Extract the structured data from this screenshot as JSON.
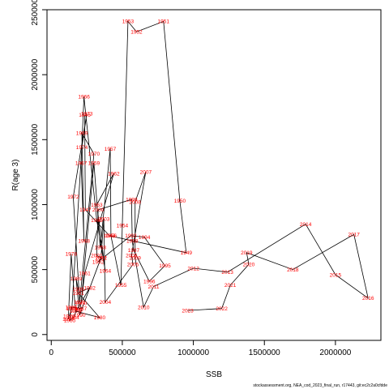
{
  "chart_data": {
    "type": "line",
    "xlabel": "SSB",
    "ylabel": "R(age 3)",
    "xlim": [
      -30000,
      2320000
    ],
    "ylim": [
      -45000,
      2500000
    ],
    "x_ticks": [
      0,
      500000,
      1000000,
      1500000,
      2000000
    ],
    "y_ticks": [
      0,
      500000,
      1000000,
      1500000,
      2000000,
      2500000
    ],
    "line_color": "#000000",
    "label_color": "#ff0000",
    "points": [
      {
        "year": "1946",
        "x": 235000,
        "y": 1690000
      },
      {
        "year": "1947",
        "x": 240000,
        "y": 960000
      },
      {
        "year": "1948",
        "x": 410000,
        "y": 760000
      },
      {
        "year": "1949",
        "x": 950000,
        "y": 630000
      },
      {
        "year": "1950",
        "x": 905000,
        "y": 1030000
      },
      {
        "year": "1951",
        "x": 790000,
        "y": 2410000
      },
      {
        "year": "1952",
        "x": 600000,
        "y": 2330000
      },
      {
        "year": "1953",
        "x": 540000,
        "y": 2410000
      },
      {
        "year": "1954",
        "x": 500000,
        "y": 840000
      },
      {
        "year": "1955",
        "x": 490000,
        "y": 380000
      },
      {
        "year": "1956",
        "x": 420000,
        "y": 760000
      },
      {
        "year": "1957",
        "x": 415000,
        "y": 1430000
      },
      {
        "year": "1958",
        "x": 345000,
        "y": 670000
      },
      {
        "year": "1959",
        "x": 300000,
        "y": 1320000
      },
      {
        "year": "1960",
        "x": 210000,
        "y": 240000
      },
      {
        "year": "1961",
        "x": 235000,
        "y": 470000
      },
      {
        "year": "1962",
        "x": 440000,
        "y": 1240000
      },
      {
        "year": "1963",
        "x": 320000,
        "y": 1000000
      },
      {
        "year": "1964",
        "x": 380000,
        "y": 490000
      },
      {
        "year": "1965",
        "x": 320000,
        "y": 880000
      },
      {
        "year": "1966",
        "x": 230000,
        "y": 1830000
      },
      {
        "year": "1967",
        "x": 210000,
        "y": 1320000
      },
      {
        "year": "1968",
        "x": 230000,
        "y": 720000
      },
      {
        "year": "1969",
        "x": 215000,
        "y": 1550000
      },
      {
        "year": "1970",
        "x": 300000,
        "y": 1390000
      },
      {
        "year": "1971",
        "x": 200000,
        "y": 250000
      },
      {
        "year": "1972",
        "x": 155000,
        "y": 1060000
      },
      {
        "year": "1973",
        "x": 250000,
        "y": 1700000
      },
      {
        "year": "1974",
        "x": 215000,
        "y": 1440000
      },
      {
        "year": "1975",
        "x": 145000,
        "y": 200000
      },
      {
        "year": "1976",
        "x": 125000,
        "y": 140000
      },
      {
        "year": "1977",
        "x": 120000,
        "y": 120000
      },
      {
        "year": "1978",
        "x": 140000,
        "y": 620000
      },
      {
        "year": "1979",
        "x": 170000,
        "y": 180000
      },
      {
        "year": "1980",
        "x": 340000,
        "y": 130000
      },
      {
        "year": "1981",
        "x": 190000,
        "y": 320000
      },
      {
        "year": "1982",
        "x": 270000,
        "y": 360000
      },
      {
        "year": "1983",
        "x": 180000,
        "y": 190000
      },
      {
        "year": "1984",
        "x": 155000,
        "y": 130000
      },
      {
        "year": "1985",
        "x": 130000,
        "y": 110000
      },
      {
        "year": "1986",
        "x": 140000,
        "y": 210000
      },
      {
        "year": "1987",
        "x": 210000,
        "y": 200000
      },
      {
        "year": "1988",
        "x": 190000,
        "y": 350000
      },
      {
        "year": "1989",
        "x": 175000,
        "y": 430000
      },
      {
        "year": "1990",
        "x": 200000,
        "y": 150000
      },
      {
        "year": "1991",
        "x": 350000,
        "y": 590000
      },
      {
        "year": "1992",
        "x": 330000,
        "y": 560000
      },
      {
        "year": "1993",
        "x": 560000,
        "y": 760000
      },
      {
        "year": "1994",
        "x": 655000,
        "y": 750000
      },
      {
        "year": "1995",
        "x": 800000,
        "y": 530000
      },
      {
        "year": "1996",
        "x": 690000,
        "y": 410000
      },
      {
        "year": "1997",
        "x": 580000,
        "y": 650000
      },
      {
        "year": "1998",
        "x": 570000,
        "y": 720000
      },
      {
        "year": "1999",
        "x": 565000,
        "y": 1040000
      },
      {
        "year": "2000",
        "x": 330000,
        "y": 960000
      },
      {
        "year": "2001",
        "x": 320000,
        "y": 610000
      },
      {
        "year": "2002",
        "x": 350000,
        "y": 590000
      },
      {
        "year": "2003",
        "x": 370000,
        "y": 890000
      },
      {
        "year": "2004",
        "x": 380000,
        "y": 250000
      },
      {
        "year": "2005",
        "x": 575000,
        "y": 540000
      },
      {
        "year": "2006",
        "x": 565000,
        "y": 610000
      },
      {
        "year": "2007",
        "x": 665000,
        "y": 1250000
      },
      {
        "year": "2008",
        "x": 590000,
        "y": 1020000
      },
      {
        "year": "2009",
        "x": 590000,
        "y": 590000
      },
      {
        "year": "2010",
        "x": 650000,
        "y": 210000
      },
      {
        "year": "2011",
        "x": 720000,
        "y": 370000
      },
      {
        "year": "2012",
        "x": 1000000,
        "y": 510000
      },
      {
        "year": "2013",
        "x": 1240000,
        "y": 480000
      },
      {
        "year": "2014",
        "x": 1790000,
        "y": 850000
      },
      {
        "year": "2015",
        "x": 2000000,
        "y": 460000
      },
      {
        "year": "2016",
        "x": 2230000,
        "y": 280000
      },
      {
        "year": "2017",
        "x": 2130000,
        "y": 770000
      },
      {
        "year": "2018",
        "x": 1700000,
        "y": 500000
      },
      {
        "year": "2019",
        "x": 1375000,
        "y": 630000
      },
      {
        "year": "2020",
        "x": 1390000,
        "y": 540000
      },
      {
        "year": "2021",
        "x": 1260000,
        "y": 380000
      },
      {
        "year": "2022",
        "x": 1200000,
        "y": 200000
      },
      {
        "year": "2023",
        "x": 960000,
        "y": 185000
      }
    ]
  },
  "caption": "stockassessment.org, NEA_cod_2023_final_run, r17443, git:ec2c2a0cfdde"
}
